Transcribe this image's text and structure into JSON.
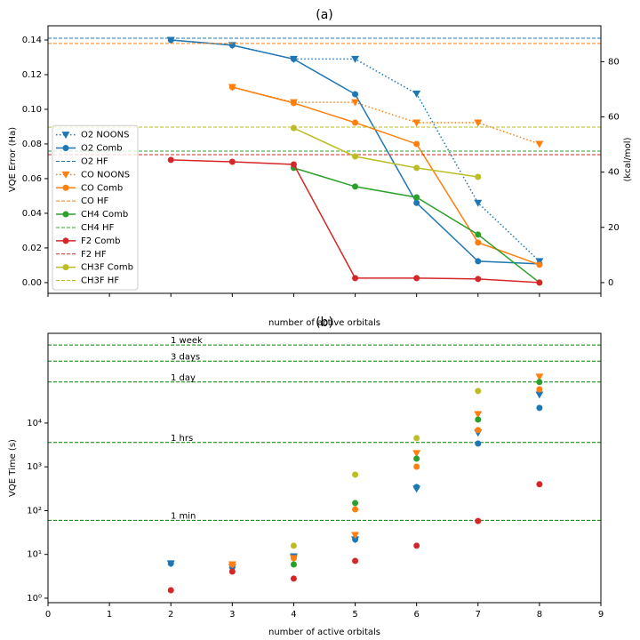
{
  "chart_data": [
    {
      "type": "line",
      "title": "(a)",
      "xlabel": "number of active orbitals",
      "ylabel": "VQE Error (Ha)",
      "y2label": "(kcal/mol)",
      "xlim": [
        0,
        9
      ],
      "ylim": [
        -0.0062,
        0.1482
      ],
      "y2lim": [
        -3.89,
        93.0
      ],
      "yticks": [
        {
          "value": 0,
          "label": "0.00"
        },
        {
          "value": 0.02,
          "label": "0.02"
        },
        {
          "value": 0.04,
          "label": "0.04"
        },
        {
          "value": 0.06,
          "label": "0.06"
        },
        {
          "value": 0.08,
          "label": "0.08"
        },
        {
          "value": 0.1,
          "label": "0.10"
        },
        {
          "value": 0.12,
          "label": "0.12"
        },
        {
          "value": 0.14,
          "label": "0.14"
        }
      ],
      "y2ticks": [
        0,
        20,
        40,
        60,
        80
      ],
      "legend": "lower left",
      "x": [
        2,
        3,
        4,
        5,
        6,
        7,
        8
      ],
      "series": [
        {
          "name": "O2 NOONS",
          "color": "#1f77b4",
          "linestyle": "dotted",
          "marker": "v",
          "values": [
            0.14,
            0.137,
            0.129,
            0.129,
            0.109,
            0.046,
            0.0123
          ]
        },
        {
          "name": "O2 Comb",
          "color": "#1f77b4",
          "linestyle": "solid",
          "marker": "o",
          "values": [
            0.14,
            0.137,
            0.129,
            0.1087,
            0.046,
            0.0123,
            0.0108
          ]
        },
        {
          "name": "O2 HF",
          "color": "#1f77b4",
          "linestyle": "dashed",
          "hline": 0.141
        },
        {
          "name": "CO NOONS",
          "color": "#ff7f0e",
          "linestyle": "dotted",
          "marker": "v",
          "values": [
            null,
            0.1128,
            0.104,
            0.104,
            0.0923,
            0.0923,
            0.08
          ]
        },
        {
          "name": "CO Comb",
          "color": "#ff7f0e",
          "linestyle": "solid",
          "marker": "o",
          "values": [
            null,
            0.1128,
            0.1036,
            0.0923,
            0.08,
            0.0231,
            0.0103
          ]
        },
        {
          "name": "CO HF",
          "color": "#ff7f0e",
          "linestyle": "dashed",
          "hline": 0.138
        },
        {
          "name": "CH4 Comb",
          "color": "#2ca02c",
          "linestyle": "solid",
          "marker": "o",
          "values": [
            null,
            null,
            0.0662,
            0.0554,
            0.0492,
            0.0277,
            0.0
          ]
        },
        {
          "name": "CH4 HF",
          "color": "#2ca02c",
          "linestyle": "dashed",
          "hline": 0.0759
        },
        {
          "name": "F2 Comb",
          "color": "#d62728",
          "linestyle": "solid",
          "marker": "o",
          "values": [
            0.0708,
            0.0697,
            0.0682,
            0.0026,
            0.0026,
            0.0021,
            0.0
          ]
        },
        {
          "name": "F2 HF",
          "color": "#d62728",
          "linestyle": "dashed",
          "hline": 0.0738
        },
        {
          "name": "CH3F Comb",
          "color": "#bcbd22",
          "linestyle": "solid",
          "marker": "o",
          "values": [
            null,
            null,
            0.0892,
            0.0728,
            0.0662,
            0.061,
            null
          ]
        },
        {
          "name": "CH3F HF",
          "color": "#bcbd22",
          "linestyle": "dashed",
          "hline": 0.0897
        }
      ]
    },
    {
      "type": "scatter",
      "title": "(b)",
      "xlabel": "number of active orbitals",
      "ylabel": "VQE Time (s)",
      "xlim": [
        0,
        9
      ],
      "xticks": [
        0,
        1,
        2,
        3,
        4,
        5,
        6,
        7,
        8,
        9
      ],
      "ylim": [
        0.79,
        1120000
      ],
      "log_scale": true,
      "yticks": [
        {
          "value": 1,
          "label": "10⁰"
        },
        {
          "value": 10,
          "label": "10¹"
        },
        {
          "value": 100,
          "label": "10²"
        },
        {
          "value": 1000,
          "label": "10³"
        },
        {
          "value": 10000,
          "label": "10⁴"
        }
      ],
      "hline_color": "#008000",
      "hlines": [
        {
          "value": 60,
          "label": "1 min"
        },
        {
          "value": 3600,
          "label": "1 hrs"
        },
        {
          "value": 86400,
          "label": "1 day"
        },
        {
          "value": 259200,
          "label": "3 days"
        },
        {
          "value": 604800,
          "label": "1 week"
        }
      ],
      "x": [
        2,
        3,
        4,
        5,
        6,
        7,
        8
      ],
      "series": [
        {
          "color": "#1f77b4",
          "marker": "v",
          "values": [
            6.2,
            5.1,
            9.0,
            21.9,
            315,
            6000,
            44600
          ]
        },
        {
          "color": "#1f77b4",
          "marker": "o",
          "values": [
            6.2,
            5.1,
            9.0,
            21.9,
            346,
            3400,
            22200
          ]
        },
        {
          "color": "#ff7f0e",
          "marker": "v",
          "values": [
            null,
            5.9,
            8.2,
            27.6,
            2050,
            15900,
            114000
          ]
        },
        {
          "color": "#ff7f0e",
          "marker": "o",
          "values": [
            null,
            5.9,
            8.2,
            107,
            1010,
            6900,
            59000
          ]
        },
        {
          "color": "#2ca02c",
          "marker": "o",
          "values": [
            null,
            null,
            5.9,
            149,
            1540,
            12000,
            86400
          ]
        },
        {
          "color": "#d62728",
          "marker": "o",
          "values": [
            1.52,
            4.06,
            2.8,
            7.1,
            15.8,
            58,
            400
          ]
        },
        {
          "color": "#bcbd22",
          "marker": "o",
          "values": [
            null,
            null,
            15.8,
            664,
            4520,
            53900,
            null
          ]
        }
      ]
    }
  ]
}
